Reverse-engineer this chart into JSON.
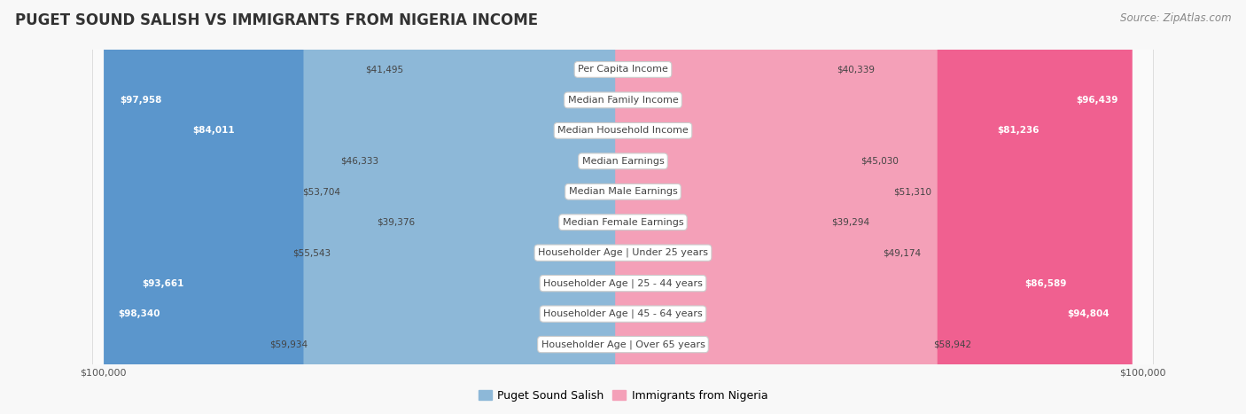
{
  "title": "PUGET SOUND SALISH VS IMMIGRANTS FROM NIGERIA INCOME",
  "source": "Source: ZipAtlas.com",
  "categories": [
    "Per Capita Income",
    "Median Family Income",
    "Median Household Income",
    "Median Earnings",
    "Median Male Earnings",
    "Median Female Earnings",
    "Householder Age | Under 25 years",
    "Householder Age | 25 - 44 years",
    "Householder Age | 45 - 64 years",
    "Householder Age | Over 65 years"
  ],
  "salish_values": [
    41495,
    97958,
    84011,
    46333,
    53704,
    39376,
    55543,
    93661,
    98340,
    59934
  ],
  "nigeria_values": [
    40339,
    96439,
    81236,
    45030,
    51310,
    39294,
    49174,
    86589,
    94804,
    58942
  ],
  "max_value": 100000,
  "salish_color": "#8db8d8",
  "nigeria_color": "#f4a0b8",
  "salish_color_strong": "#5b96cc",
  "nigeria_color_strong": "#f06090",
  "bg_even": "#f2f2f2",
  "bg_odd": "#fafafa",
  "row_edge": "#d8d8d8",
  "label_box_bg": "#ffffff",
  "label_box_edge": "#cccccc",
  "title_fontsize": 12,
  "source_fontsize": 8.5,
  "category_fontsize": 8,
  "value_fontsize": 7.5,
  "legend_fontsize": 9,
  "text_dark": "#444444",
  "text_light": "#ffffff",
  "salish_label": "Puget Sound Salish",
  "nigeria_label": "Immigrants from Nigeria",
  "strong_threshold": 80000
}
